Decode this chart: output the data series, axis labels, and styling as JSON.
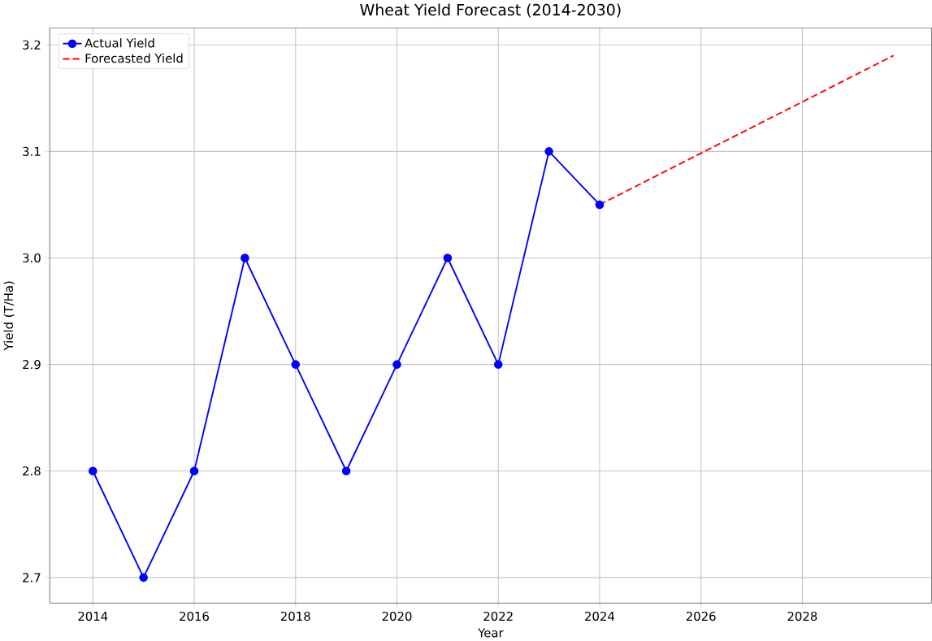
{
  "chart_data": {
    "type": "line",
    "title": "Wheat Yield Forecast (2014-2030)",
    "xlabel": "Year",
    "ylabel": "Yield (T/Ha)",
    "series": [
      {
        "name": "Actual Yield",
        "color": "#0000ff",
        "marker": "circle",
        "line_style": "solid",
        "x": [
          2014,
          2015,
          2016,
          2017,
          2018,
          2019,
          2020,
          2021,
          2022,
          2023,
          2024
        ],
        "values": [
          2.8,
          2.7,
          2.8,
          3.0,
          2.9,
          2.8,
          2.9,
          3.0,
          2.9,
          3.1,
          3.05
        ]
      },
      {
        "name": "Forecasted Yield",
        "color": "#ff0000",
        "marker": "none",
        "line_style": "dashed",
        "x": [
          2024,
          2029.8
        ],
        "values": [
          3.05,
          3.19
        ]
      }
    ],
    "xlim": [
      2013.15,
      2030.55
    ],
    "ylim": [
      2.676,
      3.216
    ],
    "xticks": [
      2014,
      2016,
      2018,
      2020,
      2022,
      2024,
      2026,
      2028
    ],
    "yticks": [
      {
        "value": 2.7,
        "label": "2.7"
      },
      {
        "value": 2.8,
        "label": "2.8"
      },
      {
        "value": 2.9,
        "label": "2.9"
      },
      {
        "value": 3.0,
        "label": "3.0"
      },
      {
        "value": 3.1,
        "label": "3.1"
      },
      {
        "value": 3.2,
        "label": "3.2"
      }
    ],
    "grid": true,
    "legend": "top left"
  }
}
